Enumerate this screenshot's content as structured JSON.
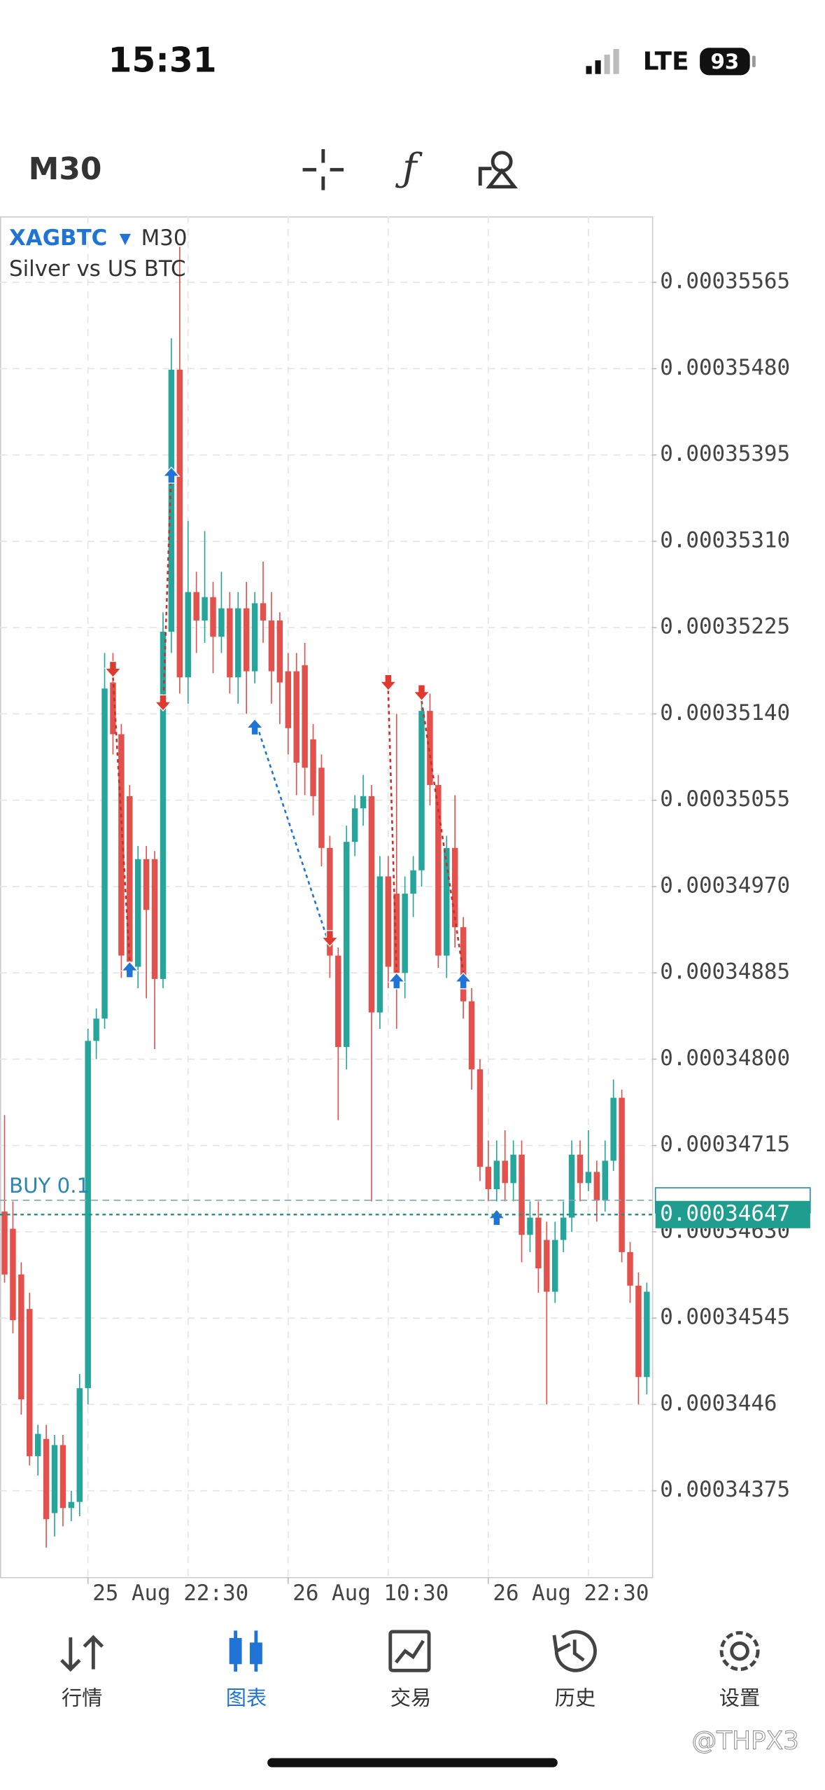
{
  "status": {
    "time": "15:31",
    "network": "LTE",
    "battery": "93"
  },
  "toolbar": {
    "timeframe": "M30"
  },
  "chart_data": {
    "type": "candlestick",
    "symbol": "XAGBTC",
    "timeframe": "M30",
    "subtitle": "Silver vs US BTC",
    "categories": [
      null,
      null,
      null,
      null,
      null,
      null,
      null,
      null,
      null,
      null,
      "25 Aug 22:30",
      null,
      null,
      null,
      null,
      null,
      null,
      null,
      null,
      null,
      null,
      null,
      null,
      null,
      null,
      null,
      null,
      null,
      null,
      null,
      null,
      null,
      null,
      null,
      "26 Aug 10:30",
      null,
      null,
      null,
      null,
      null,
      null,
      null,
      null,
      null,
      null,
      null,
      null,
      null,
      null,
      null,
      null,
      null,
      null,
      null,
      null,
      null,
      null,
      null,
      "26 Aug 22:30",
      null,
      null,
      null,
      null,
      null,
      null,
      null,
      null,
      null,
      null,
      null,
      null,
      null,
      null,
      null,
      null,
      null,
      null,
      null
    ],
    "open": [
      0.0003465,
      0.00034633,
      0.00034588,
      0.00034554,
      0.00034409,
      0.00034426,
      0.00034353,
      0.0003442,
      0.00034358,
      0.00034364,
      0.00034476,
      0.00034818,
      0.0003484,
      0.00035171,
      0.0003512,
      0.00035059,
      0.00034891,
      0.00034997,
      0.00034997,
      0.00034879,
      0.00035221,
      0.00035479,
      0.00035176,
      0.0003526,
      0.00035232,
      0.00035255,
      0.00035216,
      0.00035244,
      0.00035176,
      0.00035244,
      0.00035182,
      0.00035249,
      0.00035232,
      0.00035232,
      0.00035182,
      0.00035182,
      0.00035188,
      0.00035115,
      0.00035087,
      0.00035008,
      0.00034902,
      0.00034812,
      0.00035014,
      0.00035047,
      0.00035059,
      0.00034846,
      0.0003498,
      0.00034963,
      0.00034885,
      0.00034963,
      0.00034986,
      0.00035143,
      0.0003507,
      0.00034902,
      0.00035008,
      0.0003493,
      0.00034857,
      0.0003479,
      0.00034694,
      0.00034672,
      0.000347,
      0.00034678,
      0.00034706,
      0.00034627,
      0.00034644,
      0.00034622,
      0.00034571,
      0.00034622,
      0.00034644,
      0.00034706,
      0.00034678,
      0.00034689,
      0.00034661,
      0.000347,
      0.00034762,
      0.0003461,
      0.00034577,
      0.00034487
    ],
    "high": [
      0.00034745,
      0.0003466,
      0.000346,
      0.0003457,
      0.0003444,
      0.0003444,
      0.0003443,
      0.0003443,
      0.00034375,
      0.0003449,
      0.0003483,
      0.0003485,
      0.000352,
      0.000352,
      0.0003513,
      0.0003507,
      0.0003501,
      0.0003501,
      0.00035005,
      0.0003524,
      0.0003551,
      0.000356,
      0.0003533,
      0.0003528,
      0.0003532,
      0.0003527,
      0.0003528,
      0.0003526,
      0.0003526,
      0.0003527,
      0.0003526,
      0.0003529,
      0.0003526,
      0.0003524,
      0.000352,
      0.000352,
      0.0003521,
      0.0003513,
      0.000351,
      0.0003502,
      0.0003491,
      0.0003503,
      0.0003506,
      0.0003508,
      0.0003507,
      0.00035,
      0.00035,
      0.0003514,
      0.0003498,
      0.00035,
      0.0003516,
      0.0003516,
      0.0003508,
      0.0003502,
      0.0003506,
      0.0003494,
      0.0003487,
      0.000348,
      0.0003472,
      0.0003472,
      0.0003473,
      0.0003472,
      0.0003472,
      0.0003466,
      0.0003466,
      0.0003464,
      0.0003464,
      0.0003466,
      0.0003472,
      0.0003472,
      0.0003473,
      0.000347,
      0.0003472,
      0.0003478,
      0.0003477,
      0.0003462,
      0.0003459,
      0.0003458
    ],
    "low": [
      0.0003458,
      0.0003453,
      0.0003445,
      0.000344,
      0.0003439,
      0.00034319,
      0.0003433,
      0.0003434,
      0.00034345,
      0.0003435,
      0.0003446,
      0.000348,
      0.0003483,
      0.000351,
      0.0003488,
      0.0003488,
      0.0003487,
      0.0003486,
      0.0003481,
      0.0003487,
      0.000352,
      0.0003516,
      0.0003515,
      0.000352,
      0.0003521,
      0.0003518,
      0.000352,
      0.0003516,
      0.0003515,
      0.0003514,
      0.0003517,
      0.0003521,
      0.0003515,
      0.0003513,
      0.000351,
      0.0003506,
      0.0003506,
      0.0003504,
      0.0003499,
      0.0003488,
      0.0003474,
      0.0003479,
      0.00035,
      0.0003503,
      0.0003466,
      0.0003483,
      0.0003487,
      0.0003483,
      0.0003486,
      0.0003494,
      0.0003497,
      0.0003505,
      0.0003489,
      0.0003488,
      0.0003491,
      0.0003484,
      0.0003477,
      0.0003468,
      0.0003466,
      0.0003466,
      0.0003466,
      0.0003466,
      0.000346,
      0.0003461,
      0.0003457,
      0.0003446,
      0.0003456,
      0.0003461,
      0.0003463,
      0.0003466,
      0.0003467,
      0.0003464,
      0.0003465,
      0.0003469,
      0.000346,
      0.0003456,
      0.0003446,
      0.0003447
    ],
    "close": [
      0.00034588,
      0.00034543,
      0.00034465,
      0.00034409,
      0.00034431,
      0.00034347,
      0.0003442,
      0.00034358,
      0.00034364,
      0.00034476,
      0.00034818,
      0.0003484,
      0.00035165,
      0.0003512,
      0.00034902,
      0.00034896,
      0.00034997,
      0.00034947,
      0.00034879,
      0.00035221,
      0.00035479,
      0.00035176,
      0.0003526,
      0.00035232,
      0.00035255,
      0.00035216,
      0.00035244,
      0.00035176,
      0.00035244,
      0.00035182,
      0.00035249,
      0.00035232,
      0.00035182,
      0.00035171,
      0.00035126,
      0.00035092,
      0.00035087,
      0.00035059,
      0.00035008,
      0.00034902,
      0.00034812,
      0.00035014,
      0.00035047,
      0.00035059,
      0.00034846,
      0.0003498,
      0.00034891,
      0.00034885,
      0.00034963,
      0.00034986,
      0.00035143,
      0.0003507,
      0.00034902,
      0.00035008,
      0.0003493,
      0.00034857,
      0.0003479,
      0.00034694,
      0.00034672,
      0.000347,
      0.00034678,
      0.00034706,
      0.00034627,
      0.00034644,
      0.00034594,
      0.00034571,
      0.00034622,
      0.00034644,
      0.00034706,
      0.00034678,
      0.00034689,
      0.00034661,
      0.000347,
      0.00034762,
      0.0003461,
      0.00034577,
      0.00034487,
      0.00034571
    ],
    "up_color": "#26a69a",
    "down_color": "#e2514c",
    "ylim": [
      0.0003429,
      0.0003563
    ],
    "yticks": [
      0.00035565,
      {
        "value": 0.0003548,
        "label": "0.00035480"
      },
      0.00035395,
      {
        "value": 0.0003531,
        "label": "0.00035310"
      },
      0.00035225,
      {
        "value": 0.0003514,
        "label": "0.00035140"
      },
      0.00035055,
      {
        "value": 0.0003497,
        "label": "0.00034970"
      },
      0.00034885,
      {
        "value": 0.000348,
        "label": "0.00034800"
      },
      0.00034715,
      {
        "value": 0.0003463,
        "label": "0.00034630"
      },
      0.00034545,
      0.0003446,
      0.00034375
    ],
    "grid": true,
    "trades": [
      {
        "side": "sell",
        "open": [
          13,
          0.00035176
        ],
        "close": [
          15,
          0.00034896
        ]
      },
      {
        "side": "sell",
        "open": [
          19,
          0.00035143
        ],
        "close": [
          20,
          0.00035383
        ]
      },
      {
        "side": "buy",
        "open": [
          30,
          0.00035135
        ],
        "close": [
          39,
          0.00034911
        ]
      },
      {
        "side": "sell",
        "open": [
          46,
          0.00035163
        ],
        "close": [
          47,
          0.00034885
        ]
      },
      {
        "side": "sell",
        "open": [
          50,
          0.00035153
        ],
        "close": [
          55,
          0.00034885
        ]
      }
    ],
    "position": {
      "label": "BUY 0.1",
      "price": 0.00034661,
      "entry_bar": 59,
      "entry_price": 0.00034652
    },
    "bid": 0.00034647
  },
  "tabs": [
    "行情",
    "图表",
    "交易",
    "历史",
    "设置"
  ],
  "watermark": "@THPX3"
}
